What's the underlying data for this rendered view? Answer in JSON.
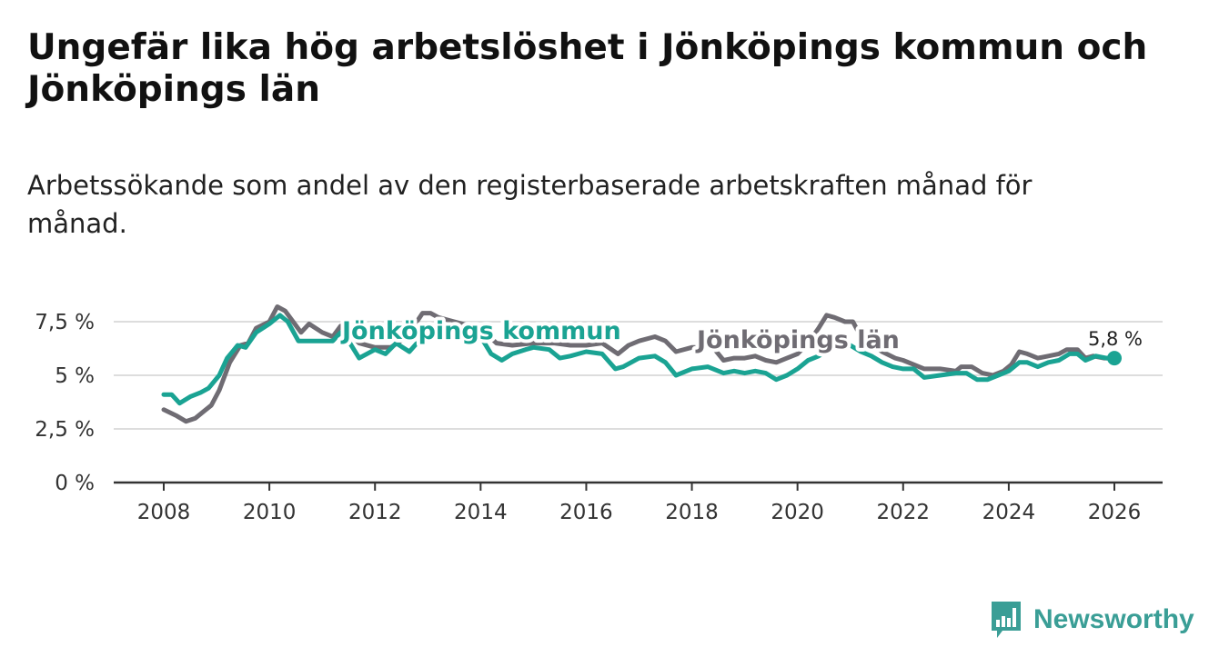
{
  "title": "Ungefär lika hög arbetslöshet i Jönköpings kommun och Jönköpings län",
  "subtitle": "Arbetssökande som andel av den registerbaserade arbetskraften månad för månad.",
  "brand": {
    "name": "Newsworthy",
    "icon": "newsworthy-logo-icon",
    "color": "#3a9e96"
  },
  "colors": {
    "kommun": "#1aa393",
    "lan": "#6f6c73",
    "grid": "#dddddd",
    "axis": "#333333"
  },
  "chart_data": {
    "type": "line",
    "title": "Ungefär lika hög arbetslöshet i Jönköpings kommun och Jönköpings län",
    "xlabel": "",
    "ylabel": "",
    "xlim": [
      2008,
      2026
    ],
    "ylim": [
      0,
      8.5
    ],
    "x_ticks": [
      2008,
      2010,
      2012,
      2014,
      2016,
      2018,
      2020,
      2022,
      2024,
      2026
    ],
    "x_tick_labels": [
      "2008",
      "2010",
      "2012",
      "2014",
      "2016",
      "2018",
      "2020",
      "2022",
      "2024",
      "2026"
    ],
    "y_ticks": [
      0,
      2.5,
      5,
      7.5
    ],
    "y_tick_labels": [
      "0 %",
      "2,5 %",
      "5 %",
      "7,5 %"
    ],
    "grid": true,
    "series": [
      {
        "name": "Jönköpings län",
        "color": "#6f6c73",
        "points": [
          [
            2008.0,
            3.4
          ],
          [
            2008.25,
            3.1
          ],
          [
            2008.42,
            2.85
          ],
          [
            2008.6,
            3.0
          ],
          [
            2008.75,
            3.3
          ],
          [
            2008.9,
            3.6
          ],
          [
            2009.05,
            4.3
          ],
          [
            2009.25,
            5.6
          ],
          [
            2009.45,
            6.4
          ],
          [
            2009.6,
            6.5
          ],
          [
            2009.75,
            7.2
          ],
          [
            2010.0,
            7.5
          ],
          [
            2010.15,
            8.2
          ],
          [
            2010.3,
            8.0
          ],
          [
            2010.45,
            7.5
          ],
          [
            2010.6,
            7.0
          ],
          [
            2010.75,
            7.4
          ],
          [
            2011.0,
            7.0
          ],
          [
            2011.2,
            6.8
          ],
          [
            2011.35,
            7.3
          ],
          [
            2011.5,
            7.0
          ],
          [
            2011.7,
            6.5
          ],
          [
            2012.0,
            6.3
          ],
          [
            2012.3,
            6.3
          ],
          [
            2012.6,
            6.8
          ],
          [
            2012.9,
            7.9
          ],
          [
            2013.05,
            7.9
          ],
          [
            2013.2,
            7.7
          ],
          [
            2013.5,
            7.5
          ],
          [
            2013.8,
            7.3
          ],
          [
            2014.0,
            7.2
          ],
          [
            2014.3,
            6.5
          ],
          [
            2014.6,
            6.4
          ],
          [
            2015.0,
            6.5
          ],
          [
            2015.4,
            6.5
          ],
          [
            2015.7,
            6.4
          ],
          [
            2016.0,
            6.4
          ],
          [
            2016.3,
            6.5
          ],
          [
            2016.6,
            6.0
          ],
          [
            2016.8,
            6.4
          ],
          [
            2017.0,
            6.6
          ],
          [
            2017.3,
            6.8
          ],
          [
            2017.5,
            6.6
          ],
          [
            2017.7,
            6.1
          ],
          [
            2018.0,
            6.3
          ],
          [
            2018.4,
            6.3
          ],
          [
            2018.6,
            5.7
          ],
          [
            2018.8,
            5.8
          ],
          [
            2019.0,
            5.8
          ],
          [
            2019.2,
            5.9
          ],
          [
            2019.4,
            5.7
          ],
          [
            2019.6,
            5.6
          ],
          [
            2019.8,
            5.8
          ],
          [
            2020.0,
            6.0
          ],
          [
            2020.2,
            6.5
          ],
          [
            2020.4,
            7.2
          ],
          [
            2020.55,
            7.8
          ],
          [
            2020.7,
            7.7
          ],
          [
            2020.9,
            7.5
          ],
          [
            2021.05,
            7.5
          ],
          [
            2021.2,
            6.8
          ],
          [
            2021.4,
            6.5
          ],
          [
            2021.6,
            6.1
          ],
          [
            2021.85,
            5.8
          ],
          [
            2022.0,
            5.7
          ],
          [
            2022.2,
            5.5
          ],
          [
            2022.4,
            5.3
          ],
          [
            2022.7,
            5.3
          ],
          [
            2023.0,
            5.2
          ],
          [
            2023.1,
            5.4
          ],
          [
            2023.3,
            5.4
          ],
          [
            2023.5,
            5.1
          ],
          [
            2023.7,
            5.0
          ],
          [
            2023.9,
            5.2
          ],
          [
            2024.05,
            5.5
          ],
          [
            2024.2,
            6.1
          ],
          [
            2024.35,
            6.0
          ],
          [
            2024.55,
            5.8
          ],
          [
            2024.75,
            5.9
          ],
          [
            2024.95,
            6.0
          ],
          [
            2025.1,
            6.2
          ],
          [
            2025.3,
            6.2
          ],
          [
            2025.45,
            5.8
          ],
          [
            2025.6,
            5.9
          ],
          [
            2025.8,
            5.8
          ],
          [
            2026.0,
            5.8
          ]
        ]
      },
      {
        "name": "Jönköpings kommun",
        "color": "#1aa393",
        "points": [
          [
            2008.0,
            4.1
          ],
          [
            2008.15,
            4.1
          ],
          [
            2008.3,
            3.7
          ],
          [
            2008.5,
            4.0
          ],
          [
            2008.7,
            4.2
          ],
          [
            2008.85,
            4.4
          ],
          [
            2009.05,
            5.0
          ],
          [
            2009.2,
            5.8
          ],
          [
            2009.4,
            6.4
          ],
          [
            2009.55,
            6.3
          ],
          [
            2009.75,
            7.0
          ],
          [
            2010.0,
            7.4
          ],
          [
            2010.2,
            7.8
          ],
          [
            2010.35,
            7.5
          ],
          [
            2010.55,
            6.6
          ],
          [
            2010.75,
            6.6
          ],
          [
            2011.0,
            6.6
          ],
          [
            2011.2,
            6.6
          ],
          [
            2011.35,
            7.0
          ],
          [
            2011.5,
            6.6
          ],
          [
            2011.7,
            5.8
          ],
          [
            2012.0,
            6.2
          ],
          [
            2012.2,
            6.0
          ],
          [
            2012.4,
            6.5
          ],
          [
            2012.65,
            6.1
          ],
          [
            2012.9,
            6.8
          ],
          [
            2013.2,
            7.1
          ],
          [
            2013.5,
            7.2
          ],
          [
            2013.8,
            7.0
          ],
          [
            2014.0,
            6.8
          ],
          [
            2014.2,
            6.0
          ],
          [
            2014.4,
            5.7
          ],
          [
            2014.6,
            6.0
          ],
          [
            2014.85,
            6.2
          ],
          [
            2015.0,
            6.3
          ],
          [
            2015.3,
            6.2
          ],
          [
            2015.5,
            5.8
          ],
          [
            2015.7,
            5.9
          ],
          [
            2016.0,
            6.1
          ],
          [
            2016.3,
            6.0
          ],
          [
            2016.55,
            5.3
          ],
          [
            2016.7,
            5.4
          ],
          [
            2017.0,
            5.8
          ],
          [
            2017.3,
            5.9
          ],
          [
            2017.5,
            5.6
          ],
          [
            2017.7,
            5.0
          ],
          [
            2018.0,
            5.3
          ],
          [
            2018.3,
            5.4
          ],
          [
            2018.6,
            5.1
          ],
          [
            2018.8,
            5.2
          ],
          [
            2019.0,
            5.1
          ],
          [
            2019.2,
            5.2
          ],
          [
            2019.4,
            5.1
          ],
          [
            2019.6,
            4.8
          ],
          [
            2019.8,
            5.0
          ],
          [
            2020.0,
            5.3
          ],
          [
            2020.2,
            5.7
          ],
          [
            2020.4,
            5.9
          ],
          [
            2020.6,
            6.2
          ],
          [
            2020.8,
            6.6
          ],
          [
            2021.0,
            6.4
          ],
          [
            2021.2,
            6.1
          ],
          [
            2021.4,
            5.9
          ],
          [
            2021.6,
            5.6
          ],
          [
            2021.8,
            5.4
          ],
          [
            2022.0,
            5.3
          ],
          [
            2022.2,
            5.3
          ],
          [
            2022.4,
            4.9
          ],
          [
            2022.7,
            5.0
          ],
          [
            2023.0,
            5.1
          ],
          [
            2023.2,
            5.1
          ],
          [
            2023.4,
            4.8
          ],
          [
            2023.6,
            4.8
          ],
          [
            2023.8,
            5.0
          ],
          [
            2024.0,
            5.2
          ],
          [
            2024.2,
            5.6
          ],
          [
            2024.35,
            5.6
          ],
          [
            2024.55,
            5.4
          ],
          [
            2024.75,
            5.6
          ],
          [
            2024.95,
            5.7
          ],
          [
            2025.15,
            6.0
          ],
          [
            2025.3,
            6.0
          ],
          [
            2025.45,
            5.7
          ],
          [
            2025.65,
            5.9
          ],
          [
            2025.85,
            5.8
          ],
          [
            2026.0,
            5.8
          ]
        ]
      }
    ],
    "annotations": [
      {
        "text": "Jönköpings kommun",
        "series": "Jönköpings kommun",
        "at": [
          2011.7,
          7.3
        ]
      },
      {
        "text": "Jönköpings län",
        "series": "Jönköpings län",
        "at": [
          2017.5,
          6.6
        ]
      },
      {
        "text": "5,8 %",
        "series": "Jönköpings kommun",
        "at": [
          2026.0,
          5.8
        ]
      }
    ],
    "end_value": {
      "x": 2026.0,
      "y": 5.8,
      "label": "5,8 %"
    }
  }
}
